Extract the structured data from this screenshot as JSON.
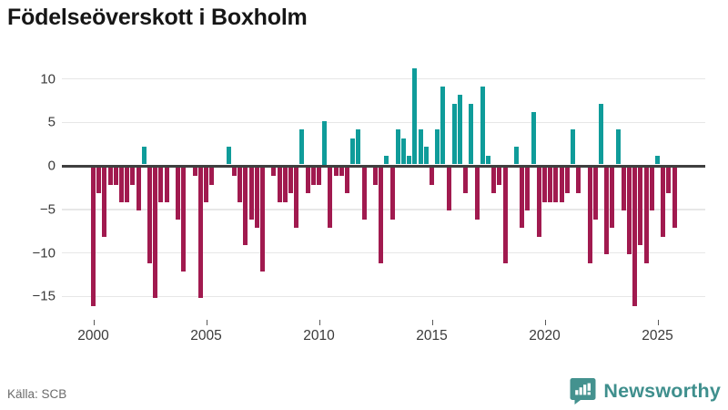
{
  "header": {
    "title": "Födelseöverskott i Boxholm"
  },
  "footer": {
    "source": "Källa: SCB",
    "brand": "Newsworthy",
    "brand_logo_icon": "speech-bubble-bar-chart-icon"
  },
  "colors": {
    "positive_bar": "#0f9c9a",
    "negative_bar": "#a11a4f",
    "brand_teal": "#44928f",
    "gridline": "#e7e7e7",
    "zero_axis": "#3f3f3f",
    "tick_text": "#3a3a3a",
    "title_text": "#161616",
    "source_text": "#6b6b6b"
  },
  "chart_data": {
    "type": "bar",
    "title": "Födelseöverskott i Boxholm",
    "xlabel": "",
    "ylabel": "",
    "frequency": "quarterly",
    "period_start": "2000Q1",
    "period_end": "2025Q4",
    "ylim": [
      -17.5,
      12.5
    ],
    "yticks": [
      10,
      5,
      0,
      -5,
      -10,
      -15
    ],
    "xticks": [
      2000,
      2005,
      2010,
      2015,
      2020,
      2025
    ],
    "grid": true,
    "legend": false,
    "series": [
      {
        "year": 2000,
        "values": [
          -16,
          -3,
          -8,
          -2
        ]
      },
      {
        "year": 2001,
        "values": [
          -2,
          -4,
          -4,
          -2
        ]
      },
      {
        "year": 2002,
        "values": [
          -5,
          2,
          -11,
          -15
        ]
      },
      {
        "year": 2003,
        "values": [
          -4,
          -4,
          0,
          -6
        ]
      },
      {
        "year": 2004,
        "values": [
          -12,
          0,
          -1,
          -15
        ]
      },
      {
        "year": 2005,
        "values": [
          -4,
          -2,
          0,
          0
        ]
      },
      {
        "year": 2006,
        "values": [
          2,
          -1,
          -4,
          -9
        ]
      },
      {
        "year": 2007,
        "values": [
          -6,
          -7,
          -12,
          0
        ]
      },
      {
        "year": 2008,
        "values": [
          -1,
          -4,
          -4,
          -3
        ]
      },
      {
        "year": 2009,
        "values": [
          -7,
          4,
          -3,
          -2
        ]
      },
      {
        "year": 2010,
        "values": [
          -2,
          5,
          -7,
          -1
        ]
      },
      {
        "year": 2011,
        "values": [
          -1,
          -3,
          3,
          4
        ]
      },
      {
        "year": 2012,
        "values": [
          -6,
          0,
          -2,
          -11
        ]
      },
      {
        "year": 2013,
        "values": [
          1,
          -6,
          4,
          3
        ]
      },
      {
        "year": 2014,
        "values": [
          1,
          11,
          4,
          2
        ]
      },
      {
        "year": 2015,
        "values": [
          -2,
          4,
          9,
          -5
        ]
      },
      {
        "year": 2016,
        "values": [
          7,
          8,
          -3,
          7
        ]
      },
      {
        "year": 2017,
        "values": [
          -6,
          9,
          1,
          -3
        ]
      },
      {
        "year": 2018,
        "values": [
          -2,
          -11,
          0,
          2
        ]
      },
      {
        "year": 2019,
        "values": [
          -7,
          -5,
          6,
          -8
        ]
      },
      {
        "year": 2020,
        "values": [
          -4,
          -4,
          -4,
          -4
        ]
      },
      {
        "year": 2021,
        "values": [
          -3,
          4,
          -3,
          0
        ]
      },
      {
        "year": 2022,
        "values": [
          -11,
          -6,
          7,
          -10
        ]
      },
      {
        "year": 2023,
        "values": [
          -7,
          4,
          -5,
          -10
        ]
      },
      {
        "year": 2024,
        "values": [
          -16,
          -9,
          -11,
          -5
        ]
      },
      {
        "year": 2025,
        "values": [
          1,
          -8,
          -3,
          -7
        ]
      }
    ]
  }
}
